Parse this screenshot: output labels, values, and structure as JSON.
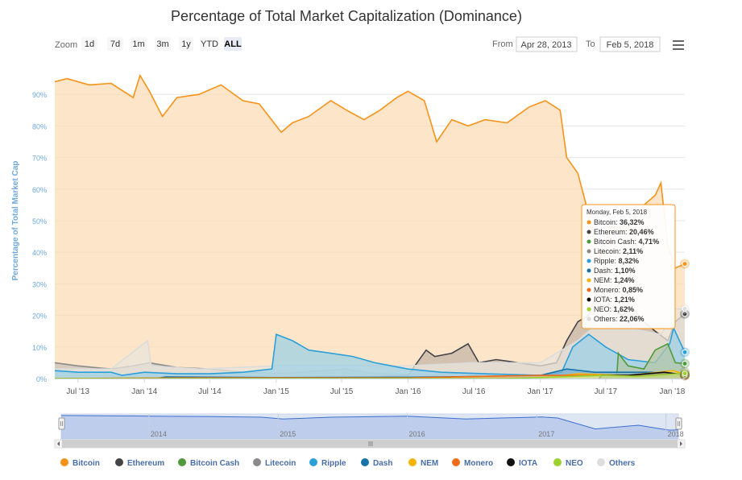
{
  "chart_data": {
    "type": "area",
    "title": "Percentage of Total Market Capitalization (Dominance)",
    "ylabel": "Percentage of Total Market Cap",
    "ylim": [
      0,
      100
    ],
    "y_ticks": [
      "0%",
      "10%",
      "20%",
      "30%",
      "40%",
      "50%",
      "60%",
      "70%",
      "80%",
      "90%"
    ],
    "x_ticks": [
      "Jul '13",
      "Jan '14",
      "Jul '14",
      "Jan '15",
      "Jul '15",
      "Jan '16",
      "Jul '16",
      "Jan '17",
      "Jul '17",
      "Jan '18"
    ],
    "x_range": [
      "2013-04-28",
      "2018-02-05"
    ],
    "grid": true,
    "legend_position": "bottom",
    "series": [
      {
        "name": "Bitcoin",
        "color": "#f7931a",
        "fill": "#fbdcb5",
        "points": [
          [
            "2013-04-28",
            94
          ],
          [
            "2013-06-01",
            95
          ],
          [
            "2013-08-01",
            93
          ],
          [
            "2013-10-01",
            93.5
          ],
          [
            "2013-12-01",
            89
          ],
          [
            "2013-12-20",
            96
          ],
          [
            "2014-01-15",
            91
          ],
          [
            "2014-02-20",
            83
          ],
          [
            "2014-04-01",
            89
          ],
          [
            "2014-06-01",
            90
          ],
          [
            "2014-08-01",
            93
          ],
          [
            "2014-10-01",
            88
          ],
          [
            "2014-11-15",
            87
          ],
          [
            "2015-01-15",
            78
          ],
          [
            "2015-02-15",
            81
          ],
          [
            "2015-04-01",
            83
          ],
          [
            "2015-06-01",
            88
          ],
          [
            "2015-07-15",
            85
          ],
          [
            "2015-09-01",
            82
          ],
          [
            "2015-10-15",
            85
          ],
          [
            "2015-12-01",
            89
          ],
          [
            "2016-01-01",
            91
          ],
          [
            "2016-02-15",
            88
          ],
          [
            "2016-03-20",
            75
          ],
          [
            "2016-05-01",
            82
          ],
          [
            "2016-06-15",
            80
          ],
          [
            "2016-08-01",
            82
          ],
          [
            "2016-10-01",
            81
          ],
          [
            "2016-12-01",
            86
          ],
          [
            "2017-01-15",
            88
          ],
          [
            "2017-02-25",
            85
          ],
          [
            "2017-03-15",
            70
          ],
          [
            "2017-04-15",
            65
          ],
          [
            "2017-05-15",
            52
          ],
          [
            "2017-06-15",
            38
          ],
          [
            "2017-07-15",
            48
          ],
          [
            "2017-08-15",
            48
          ],
          [
            "2017-09-15",
            50
          ],
          [
            "2017-10-15",
            55
          ],
          [
            "2017-11-15",
            58
          ],
          [
            "2017-12-01",
            62
          ],
          [
            "2017-12-20",
            42
          ],
          [
            "2018-01-10",
            35
          ],
          [
            "2018-02-05",
            36.32
          ]
        ]
      },
      {
        "name": "Ethereum",
        "color": "#434348",
        "fill": "#c6b6a8",
        "points": [
          [
            "2013-04-28",
            0
          ],
          [
            "2015-08-01",
            0
          ],
          [
            "2015-09-01",
            0.3
          ],
          [
            "2016-01-01",
            1
          ],
          [
            "2016-02-20",
            9
          ],
          [
            "2016-03-15",
            7
          ],
          [
            "2016-05-01",
            8
          ],
          [
            "2016-06-15",
            11
          ],
          [
            "2016-07-15",
            5
          ],
          [
            "2016-09-01",
            6
          ],
          [
            "2016-11-01",
            5
          ],
          [
            "2017-01-01",
            4
          ],
          [
            "2017-02-15",
            5
          ],
          [
            "2017-03-15",
            12
          ],
          [
            "2017-04-15",
            18
          ],
          [
            "2017-05-15",
            20
          ],
          [
            "2017-06-15",
            30
          ],
          [
            "2017-07-15",
            22
          ],
          [
            "2017-08-15",
            20
          ],
          [
            "2017-09-15",
            22
          ],
          [
            "2017-10-15",
            18
          ],
          [
            "2017-11-15",
            15
          ],
          [
            "2017-12-20",
            12
          ],
          [
            "2018-01-10",
            18
          ],
          [
            "2018-02-05",
            20.46
          ]
        ]
      },
      {
        "name": "Bitcoin Cash",
        "color": "#4f9a3c",
        "fill": "#b3c7a8",
        "points": [
          [
            "2017-07-31",
            0
          ],
          [
            "2017-08-05",
            8
          ],
          [
            "2017-09-01",
            4
          ],
          [
            "2017-10-15",
            3
          ],
          [
            "2017-11-15",
            9
          ],
          [
            "2017-12-20",
            11
          ],
          [
            "2018-01-10",
            5
          ],
          [
            "2018-02-05",
            4.71
          ]
        ]
      },
      {
        "name": "Litecoin",
        "color": "#8a8a8a",
        "fill": "#c9c2b8",
        "points": [
          [
            "2013-04-28",
            5
          ],
          [
            "2013-07-01",
            4
          ],
          [
            "2013-10-01",
            3
          ],
          [
            "2013-12-01",
            4
          ],
          [
            "2014-01-15",
            5
          ],
          [
            "2014-04-01",
            3.5
          ],
          [
            "2014-07-01",
            3
          ],
          [
            "2014-10-01",
            2
          ],
          [
            "2015-01-15",
            1.5
          ],
          [
            "2015-07-10",
            3
          ],
          [
            "2015-10-01",
            1.5
          ],
          [
            "2016-01-01",
            1.3
          ],
          [
            "2016-07-01",
            1
          ],
          [
            "2017-01-01",
            1
          ],
          [
            "2017-03-15",
            2
          ],
          [
            "2017-04-15",
            4
          ],
          [
            "2017-06-15",
            2
          ],
          [
            "2017-09-15",
            3
          ],
          [
            "2017-12-15",
            4.5
          ],
          [
            "2018-02-05",
            2.11
          ]
        ]
      },
      {
        "name": "Ripple",
        "color": "#2b9fd9",
        "fill": "#9fd0e6",
        "points": [
          [
            "2013-04-28",
            2.5
          ],
          [
            "2013-07-01",
            2
          ],
          [
            "2013-10-01",
            2
          ],
          [
            "2013-11-01",
            1
          ],
          [
            "2014-01-01",
            2
          ],
          [
            "2014-04-01",
            1.5
          ],
          [
            "2014-07-01",
            1.5
          ],
          [
            "2014-10-01",
            2
          ],
          [
            "2014-12-20",
            3
          ],
          [
            "2015-01-01",
            14
          ],
          [
            "2015-02-15",
            12
          ],
          [
            "2015-04-01",
            9
          ],
          [
            "2015-06-01",
            8
          ],
          [
            "2015-08-01",
            7
          ],
          [
            "2015-10-01",
            5
          ],
          [
            "2016-01-01",
            3
          ],
          [
            "2016-04-01",
            2
          ],
          [
            "2016-08-01",
            1.5
          ],
          [
            "2017-01-01",
            1
          ],
          [
            "2017-03-01",
            2
          ],
          [
            "2017-04-01",
            10
          ],
          [
            "2017-05-15",
            14
          ],
          [
            "2017-07-01",
            10
          ],
          [
            "2017-09-01",
            6
          ],
          [
            "2017-11-15",
            5
          ],
          [
            "2017-12-25",
            11
          ],
          [
            "2018-01-05",
            16
          ],
          [
            "2018-02-05",
            8.32
          ]
        ]
      },
      {
        "name": "Dash",
        "color": "#1573a8",
        "fill": "#7fb0cf",
        "points": [
          [
            "2013-04-28",
            0
          ],
          [
            "2014-02-01",
            0
          ],
          [
            "2014-03-01",
            0.5
          ],
          [
            "2015-01-01",
            0.3
          ],
          [
            "2016-01-01",
            0.4
          ],
          [
            "2016-07-01",
            0.6
          ],
          [
            "2017-01-01",
            1
          ],
          [
            "2017-03-15",
            3
          ],
          [
            "2017-06-01",
            2
          ],
          [
            "2017-11-01",
            2
          ],
          [
            "2018-02-05",
            1.1
          ]
        ]
      },
      {
        "name": "NEM",
        "color": "#f4b400",
        "fill": "#f3da8c",
        "points": [
          [
            "2013-04-28",
            0
          ],
          [
            "2015-04-01",
            0
          ],
          [
            "2016-01-01",
            0.1
          ],
          [
            "2017-01-01",
            0.2
          ],
          [
            "2017-04-15",
            1.5
          ],
          [
            "2017-09-01",
            1
          ],
          [
            "2018-01-05",
            2.5
          ],
          [
            "2018-02-05",
            1.24
          ]
        ]
      },
      {
        "name": "Monero",
        "color": "#ef6c1a",
        "fill": "#f2b48c",
        "points": [
          [
            "2013-04-28",
            0
          ],
          [
            "2014-06-01",
            0.2
          ],
          [
            "2016-01-01",
            0.2
          ],
          [
            "2016-09-01",
            0.8
          ],
          [
            "2017-01-01",
            1
          ],
          [
            "2017-09-01",
            1
          ],
          [
            "2018-02-05",
            0.85
          ]
        ]
      },
      {
        "name": "IOTA",
        "color": "#111111",
        "fill": "#8a8a70",
        "points": [
          [
            "2017-06-13",
            0
          ],
          [
            "2017-06-20",
            1
          ],
          [
            "2017-09-01",
            1
          ],
          [
            "2017-12-10",
            2
          ],
          [
            "2018-02-05",
            1.21
          ]
        ]
      },
      {
        "name": "NEO",
        "color": "#9bd22e",
        "fill": "#cde89a",
        "points": [
          [
            "2013-04-28",
            0
          ],
          [
            "2016-10-01",
            0
          ],
          [
            "2017-07-01",
            1
          ],
          [
            "2017-10-01",
            0.7
          ],
          [
            "2018-01-15",
            1.5
          ],
          [
            "2018-02-05",
            1.62
          ]
        ]
      },
      {
        "name": "Others",
        "color": "#dcdcdc",
        "fill": "#eae4dc",
        "points": [
          [
            "2013-04-28",
            3
          ],
          [
            "2013-10-01",
            3
          ],
          [
            "2014-01-10",
            12
          ],
          [
            "2014-01-20",
            4
          ],
          [
            "2014-06-01",
            3
          ],
          [
            "2015-01-01",
            4
          ],
          [
            "2015-06-01",
            4
          ],
          [
            "2016-01-01",
            4
          ],
          [
            "2016-07-01",
            5
          ],
          [
            "2017-01-01",
            5
          ],
          [
            "2017-04-15",
            12
          ],
          [
            "2017-06-15",
            18
          ],
          [
            "2017-09-01",
            16
          ],
          [
            "2017-12-01",
            14
          ],
          [
            "2018-01-10",
            22
          ],
          [
            "2018-02-05",
            22.06
          ]
        ]
      }
    ],
    "tooltip": {
      "date": "Monday, Feb 5, 2018",
      "rows": [
        {
          "name": "Bitcoin",
          "value": "36,32%"
        },
        {
          "name": "Ethereum",
          "value": "20,46%"
        },
        {
          "name": "Bitcoin Cash",
          "value": "4,71%"
        },
        {
          "name": "Litecoin",
          "value": "2,11%"
        },
        {
          "name": "Ripple",
          "value": "8,32%"
        },
        {
          "name": "Dash",
          "value": "1,10%"
        },
        {
          "name": "NEM",
          "value": "1,24%"
        },
        {
          "name": "Monero",
          "value": "0,85%"
        },
        {
          "name": "IOTA",
          "value": "1,21%"
        },
        {
          "name": "NEO",
          "value": "1,62%"
        },
        {
          "name": "Others",
          "value": "22,06%"
        }
      ]
    },
    "navigator": {
      "x_ticks": [
        "2014",
        "2015",
        "2016",
        "2017",
        "2018"
      ],
      "points": [
        [
          "2013-04-28",
          94
        ],
        [
          "2013-12-01",
          92
        ],
        [
          "2014-01-15",
          91
        ],
        [
          "2014-06-01",
          90
        ],
        [
          "2014-11-15",
          87
        ],
        [
          "2015-01-15",
          80
        ],
        [
          "2015-06-01",
          87
        ],
        [
          "2016-01-01",
          91
        ],
        [
          "2016-06-15",
          80
        ],
        [
          "2017-01-15",
          88
        ],
        [
          "2017-03-01",
          84
        ],
        [
          "2017-06-15",
          40
        ],
        [
          "2017-10-15",
          55
        ],
        [
          "2018-01-10",
          35
        ],
        [
          "2018-02-05",
          36
        ]
      ]
    }
  },
  "toolbar": {
    "zoom_label": "Zoom",
    "ranges": [
      "1d",
      "7d",
      "1m",
      "3m",
      "1y",
      "YTD",
      "ALL"
    ],
    "selected_range": "ALL",
    "from_label": "From",
    "from_value": "Apr 28, 2013",
    "to_label": "To",
    "to_value": "Feb 5, 2018",
    "menu_icon": "hamburger-menu-icon"
  },
  "scrollbar": {
    "left_arrow_icon": "chevron-left-icon",
    "right_arrow_icon": "chevron-right-icon",
    "grip_icon": "grip-icon"
  }
}
